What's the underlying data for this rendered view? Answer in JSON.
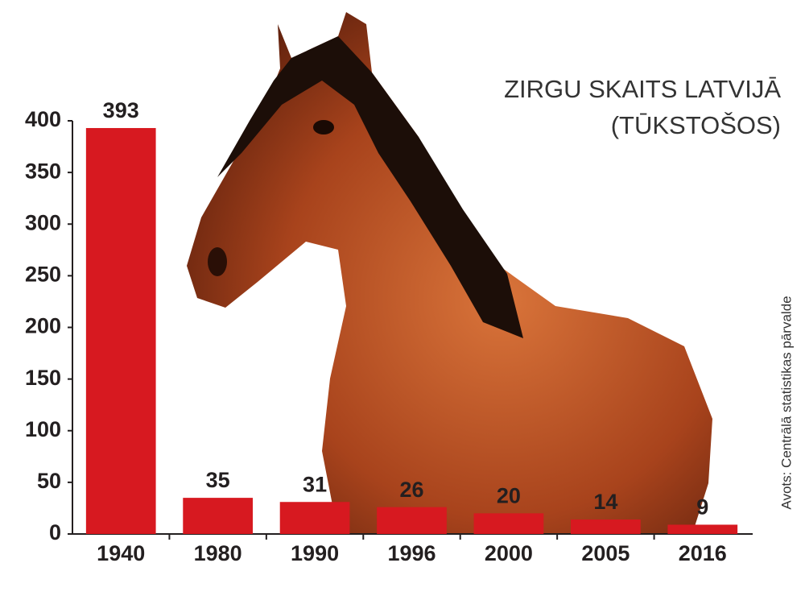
{
  "chart_data": {
    "type": "bar",
    "title": "ZIRGU SKAITS LATVIJĀ",
    "subtitle": "(TŪKSTOŠOS)",
    "source": "Avots: Centrālā statistikas pārvalde",
    "categories": [
      "1940",
      "1980",
      "1990",
      "1996",
      "2000",
      "2005",
      "2016"
    ],
    "values": [
      393,
      35,
      31,
      26,
      20,
      14,
      9
    ],
    "color": "#d71920",
    "ylim": [
      0,
      400
    ],
    "yticks": [
      0,
      50,
      100,
      150,
      200,
      250,
      300,
      350,
      400
    ],
    "grid": false
  }
}
